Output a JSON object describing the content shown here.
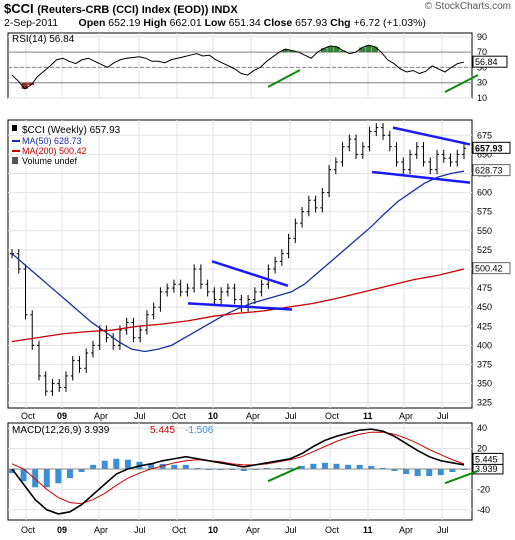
{
  "header": {
    "symbol": "$CCI",
    "name": "(Reuters-CRB (CCI) Index (EOD)) INDX",
    "watermark": "© StockCharts.com",
    "date": "2-Sep-2011",
    "open_label": "Open",
    "open": "652.19",
    "high_label": "High",
    "high": "662.01",
    "low_label": "Low",
    "low": "651.34",
    "close_label": "Close",
    "close": "657.93",
    "chg_label": "Chg",
    "chg": "+6.72 (+1.03%)"
  },
  "colors": {
    "price": "#000000",
    "ma50": "#1a2fa0",
    "ma200": "#cc0000",
    "volume": "#555555",
    "rsi_fill_over": "#3a7f3a",
    "rsi_fill_under": "#8b2a2a",
    "trendline": "#1a1aff",
    "annotation": "#0a8a0a",
    "macd_hist": "#3b8fd6",
    "macd_line": "#000000",
    "signal_line": "#cc0000"
  },
  "chart_data": [
    {
      "type": "line",
      "panel": "RSI",
      "legend": "RSI(14) 56.84",
      "value_label": "56.84",
      "ylim": [
        10,
        95
      ],
      "yticks": [
        90,
        70,
        50,
        30,
        10
      ],
      "reference_lines": [
        70,
        50,
        30
      ],
      "x_ticks": [
        "Oct",
        "09",
        "Apr",
        "Jul",
        "Oct",
        "10",
        "Apr",
        "Jul",
        "Oct",
        "11",
        "Apr",
        "Jul"
      ],
      "series": [
        {
          "values": [
            40,
            32,
            22,
            27,
            38,
            45,
            52,
            60,
            62,
            58,
            55,
            60,
            62,
            58,
            54,
            50,
            56,
            60,
            62,
            63,
            64,
            62,
            58,
            58,
            56,
            60,
            62,
            64,
            66,
            68,
            65,
            66,
            60,
            56,
            52,
            48,
            42,
            40,
            46,
            50,
            58,
            64,
            70,
            74,
            72,
            70,
            66,
            62,
            70,
            75,
            78,
            77,
            72,
            68,
            70,
            76,
            79,
            77,
            70,
            60,
            55,
            48,
            44,
            46,
            42,
            45,
            52,
            48,
            44,
            50,
            55,
            57
          ]
        }
      ]
    },
    {
      "type": "line",
      "panel": "Price",
      "legend": [
        "$CCI (Weekly) 657.93",
        "MA(50) 628.73",
        "MA(200) 500.42",
        "Volume undef"
      ],
      "ylim": [
        318,
        695
      ],
      "yticks": [
        675,
        650,
        625,
        600,
        575,
        550,
        525,
        500,
        475,
        450,
        425,
        400,
        375,
        350,
        325
      ],
      "price_labels": [
        "657.93",
        "628.73",
        "500.42"
      ],
      "x_ticks": [
        "Oct",
        "09",
        "Apr",
        "Jul",
        "Oct",
        "10",
        "Apr",
        "Jul",
        "Oct",
        "11",
        "Apr",
        "Jul"
      ],
      "series": [
        {
          "name": "$CCI (Weekly)",
          "values": [
            520,
            500,
            440,
            400,
            360,
            340,
            350,
            345,
            360,
            380,
            370,
            390,
            400,
            420,
            410,
            400,
            420,
            430,
            410,
            420,
            440,
            450,
            470,
            475,
            480,
            470,
            475,
            500,
            480,
            470,
            460,
            470,
            475,
            460,
            450,
            460,
            470,
            480,
            500,
            510,
            520,
            540,
            560,
            575,
            590,
            580,
            600,
            630,
            640,
            660,
            670,
            650,
            660,
            680,
            685,
            675,
            660,
            640,
            630,
            650,
            660,
            640,
            630,
            650,
            645,
            640,
            650,
            658
          ]
        },
        {
          "name": "MA(50)",
          "values": [
            520,
            505,
            490,
            475,
            460,
            445,
            430,
            418,
            405,
            395,
            392,
            395,
            400,
            410,
            420,
            430,
            440,
            448,
            455,
            460,
            465,
            470,
            480,
            495,
            510,
            525,
            540,
            555,
            572,
            588,
            600,
            612,
            620,
            625,
            628
          ]
        },
        {
          "name": "MA(200)",
          "values": [
            405,
            410,
            415,
            418,
            420,
            425,
            428,
            432,
            438,
            442,
            445,
            450,
            455,
            462,
            470,
            478,
            486,
            492,
            500
          ]
        }
      ]
    },
    {
      "type": "line",
      "panel": "MACD",
      "legend": [
        "MACD(12,26,9) 3.939",
        "5.445",
        "-1.506"
      ],
      "value_labels": [
        "3.939",
        "5.445"
      ],
      "ylim": [
        -50,
        45
      ],
      "yticks": [
        40,
        20,
        0,
        -20,
        -40
      ],
      "x_ticks": [
        "Oct",
        "09",
        "Apr",
        "Jul",
        "Oct",
        "10",
        "Apr",
        "Jul",
        "Oct",
        "11",
        "Apr",
        "Jul"
      ],
      "series": [
        {
          "name": "MACD(12,26,9)",
          "values": [
            0,
            -15,
            -30,
            -40,
            -44,
            -42,
            -35,
            -25,
            -15,
            -5,
            0,
            3,
            5,
            8,
            10,
            12,
            10,
            8,
            6,
            4,
            2,
            4,
            6,
            8,
            10,
            15,
            22,
            28,
            32,
            35,
            38,
            39,
            37,
            32,
            25,
            18,
            12,
            8,
            6,
            4
          ]
        },
        {
          "name": "Signal",
          "values": [
            5,
            0,
            -10,
            -20,
            -28,
            -33,
            -34,
            -30,
            -24,
            -16,
            -9,
            -4,
            0,
            3,
            6,
            8,
            9,
            8,
            7,
            5,
            4,
            4,
            5,
            7,
            9,
            12,
            17,
            22,
            27,
            31,
            34,
            36,
            36,
            34,
            30,
            25,
            19,
            14,
            9,
            5
          ]
        },
        {
          "name": "Histogram",
          "values": [
            -4,
            -12,
            -18,
            -18,
            -14,
            -9,
            -3,
            4,
            8,
            10,
            9,
            7,
            5,
            5,
            4,
            4,
            1,
            0,
            -1,
            -1,
            -2,
            0,
            1,
            1,
            1,
            3,
            5,
            6,
            5,
            4,
            4,
            3,
            1,
            -2,
            -5,
            -7,
            -7,
            -6,
            -3,
            -1
          ]
        }
      ]
    }
  ]
}
